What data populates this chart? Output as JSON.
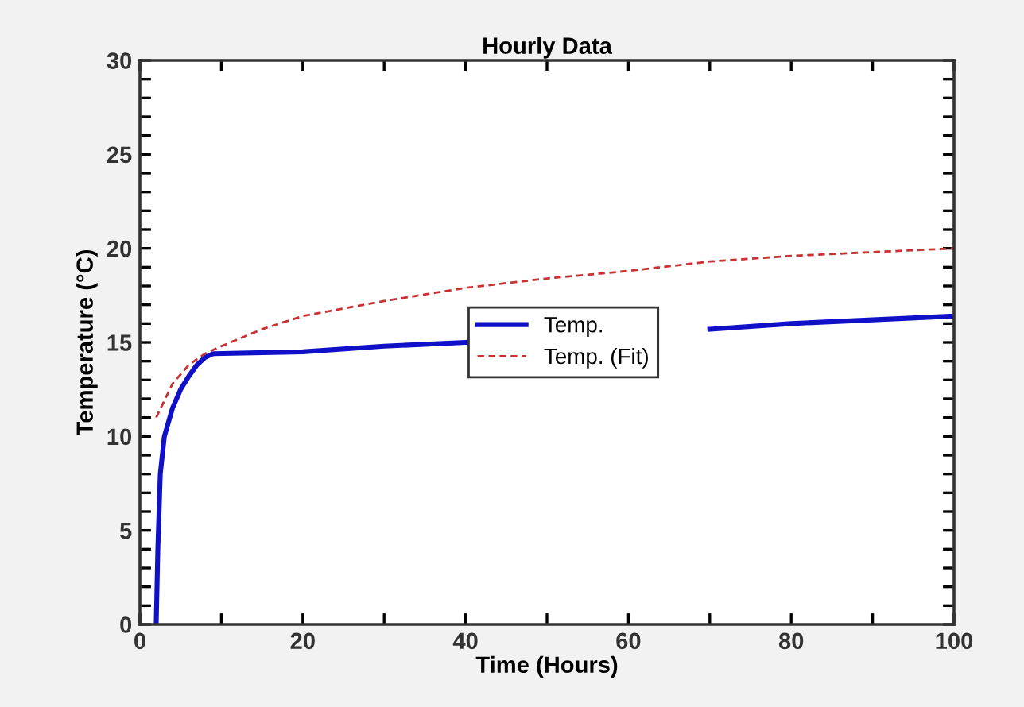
{
  "chart_data": {
    "type": "line",
    "title": "Hourly Data",
    "xlabel": "Time (Hours)",
    "ylabel": "Temperature (°C)",
    "series": [
      {
        "name": "Temp.",
        "color": "#1010c8",
        "line_style": "solid",
        "x": [
          2,
          2.2,
          2.5,
          3,
          4,
          5,
          6,
          7,
          8,
          9,
          20,
          30,
          40,
          50,
          60,
          70,
          80,
          90,
          100
        ],
        "values": [
          0,
          4,
          8,
          10,
          11.5,
          12.5,
          13.2,
          13.8,
          14.2,
          14.4,
          14.5,
          14.8,
          15,
          null,
          null,
          15.7,
          16,
          16.2,
          16.4
        ]
      },
      {
        "name": "Temp. (Fit)",
        "color": "#c83232",
        "line_style": "dashed",
        "x": [
          2,
          4,
          6,
          8,
          10,
          15,
          20,
          30,
          40,
          50,
          60,
          70,
          80,
          90,
          100
        ],
        "values": [
          11,
          12.8,
          13.8,
          14.4,
          14.8,
          15.7,
          16.4,
          17.2,
          17.9,
          18.4,
          18.8,
          19.3,
          19.6,
          19.8,
          20
        ]
      }
    ],
    "xlim": [
      0,
      100
    ],
    "ylim": [
      0,
      30
    ],
    "xticks": [
      0,
      {
        "value": 10,
        "label": null
      },
      20,
      {
        "value": 30,
        "label": null
      },
      40,
      {
        "value": 50,
        "label": null
      },
      60,
      {
        "value": 70,
        "label": null
      },
      80,
      {
        "value": 90,
        "label": null
      },
      100
    ],
    "yticks": [
      0,
      {
        "value": 1,
        "label": null
      },
      {
        "value": 2,
        "label": null
      },
      {
        "value": 3,
        "label": null
      },
      {
        "value": 4,
        "label": null
      },
      5,
      {
        "value": 6,
        "label": null
      },
      {
        "value": 7,
        "label": null
      },
      {
        "value": 8,
        "label": null
      },
      {
        "value": 9,
        "label": null
      },
      10,
      {
        "value": 11,
        "label": null
      },
      {
        "value": 12,
        "label": null
      },
      {
        "value": 13,
        "label": null
      },
      {
        "value": 14,
        "label": null
      },
      15,
      {
        "value": 16,
        "label": null
      },
      {
        "value": 17,
        "label": null
      },
      {
        "value": 18,
        "label": null
      },
      {
        "value": 19,
        "label": null
      },
      20,
      {
        "value": 21,
        "label": null
      },
      {
        "value": 22,
        "label": null
      },
      {
        "value": 23,
        "label": null
      },
      {
        "value": 24,
        "label": null
      },
      25,
      {
        "value": 26,
        "label": null
      },
      {
        "value": 27,
        "label": null
      },
      {
        "value": 28,
        "label": null
      },
      {
        "value": 29,
        "label": null
      },
      30
    ],
    "grid": false,
    "legend": "center right",
    "marker": "none"
  }
}
